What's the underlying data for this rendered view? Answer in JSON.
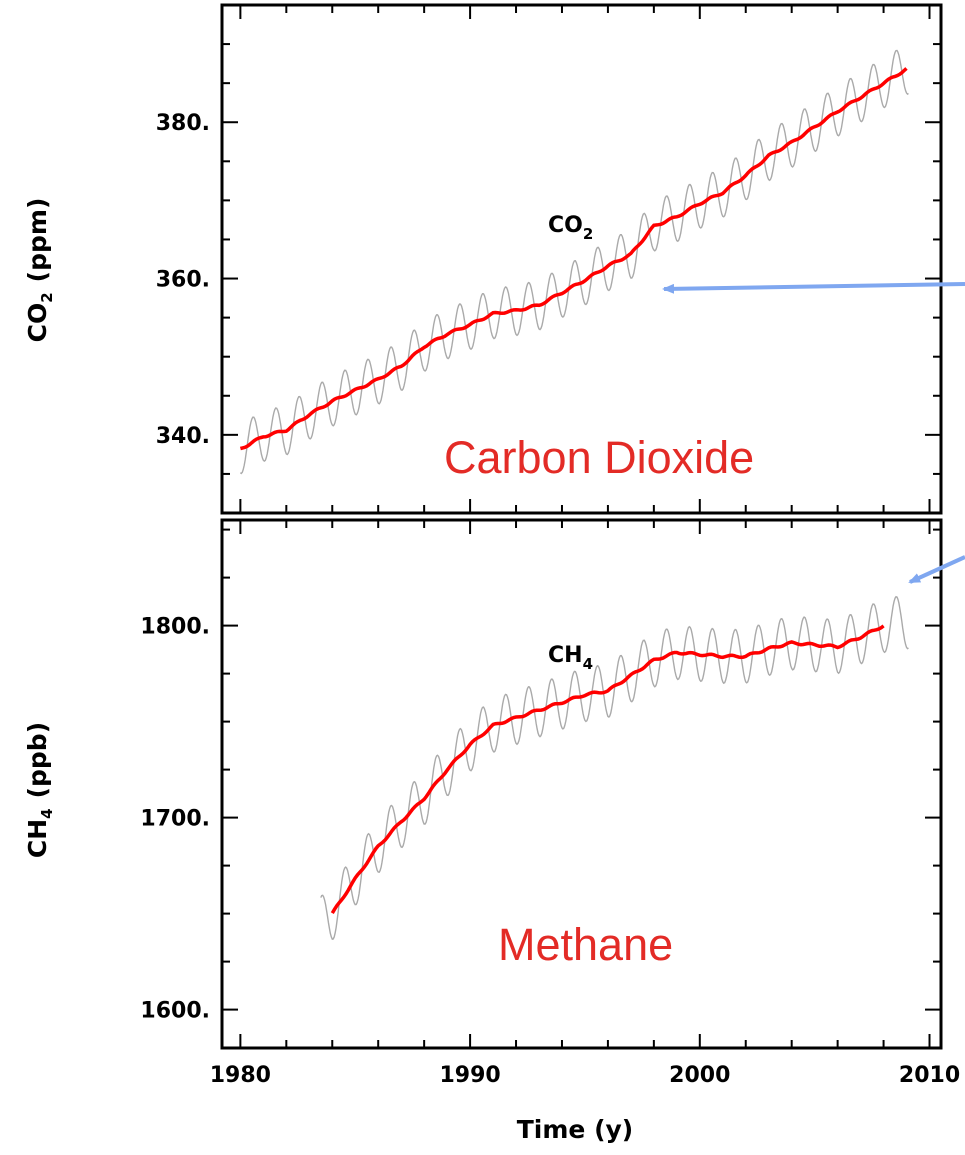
{
  "chart_data": [
    {
      "type": "line",
      "panel": "top",
      "ylabel_main": "CO",
      "ylabel_sub": "2",
      "ylabel_unit": "(ppm)",
      "ylim": [
        330,
        395
      ],
      "xlim": [
        1979.2,
        2010.5
      ],
      "yticks": [
        "340.",
        "360.",
        "380."
      ],
      "ytick_values": [
        340,
        360,
        380
      ],
      "series_label_main": "CO",
      "series_label_sub": "2",
      "annotation": "Carbon Dioxide",
      "series": [
        {
          "role": "trend",
          "color": "#ff0000",
          "x": [
            1980.0,
            1981.0,
            1982.0,
            1983.0,
            1984.0,
            1985.0,
            1986.0,
            1987.0,
            1988.0,
            1989.0,
            1990.0,
            1991.0,
            1992.0,
            1993.0,
            1994.0,
            1995.0,
            1996.0,
            1997.0,
            1998.0,
            1999.0,
            2000.0,
            2001.0,
            2002.0,
            2003.0,
            2004.0,
            2005.0,
            2006.0,
            2007.0,
            2008.0,
            2009.0
          ],
          "y": [
            338.2,
            339.8,
            340.6,
            342.6,
            344.3,
            345.7,
            347.1,
            348.8,
            351.3,
            352.9,
            354.1,
            355.5,
            355.9,
            356.6,
            358.2,
            359.8,
            361.6,
            363.1,
            366.7,
            367.9,
            369.6,
            371.0,
            373.2,
            375.7,
            377.4,
            379.4,
            381.4,
            383.2,
            385.0,
            386.8
          ]
        },
        {
          "role": "monthly",
          "color": "#aaaaaa",
          "amplitude": 3.2,
          "x": [
            1980.0,
            1981.0,
            1982.0,
            1983.0,
            1984.0,
            1985.0,
            1986.0,
            1987.0,
            1988.0,
            1989.0,
            1990.0,
            1991.0,
            1992.0,
            1993.0,
            1994.0,
            1995.0,
            1996.0,
            1997.0,
            1998.0,
            1999.0,
            2000.0,
            2001.0,
            2002.0,
            2003.0,
            2004.0,
            2005.0,
            2006.0,
            2007.0,
            2008.0,
            2009.0
          ],
          "y": [
            338.2,
            339.8,
            340.6,
            342.6,
            344.3,
            345.7,
            347.1,
            348.8,
            351.3,
            352.9,
            354.1,
            355.5,
            355.9,
            356.6,
            358.2,
            359.8,
            361.6,
            363.1,
            366.7,
            367.9,
            369.6,
            371.0,
            373.2,
            375.7,
            377.4,
            379.4,
            381.4,
            383.2,
            385.0,
            386.8
          ]
        }
      ]
    },
    {
      "type": "line",
      "panel": "bottom",
      "ylabel_main": "CH",
      "ylabel_sub": "4",
      "ylabel_unit": "(ppb)",
      "ylim": [
        1580,
        1855
      ],
      "xlim": [
        1979.2,
        2010.5
      ],
      "yticks": [
        "1600.",
        "1700.",
        "1800."
      ],
      "ytick_values": [
        1600,
        1700,
        1800
      ],
      "xticks": [
        "1980",
        "1990",
        "2000",
        "2010"
      ],
      "xtick_values": [
        1980,
        1990,
        2000,
        2010
      ],
      "xlabel": "Time (y)",
      "series_label_main": "CH",
      "series_label_sub": "4",
      "annotation": "Methane",
      "series": [
        {
          "role": "trend",
          "color": "#ff0000",
          "x": [
            1984.0,
            1985.0,
            1986.0,
            1987.0,
            1988.0,
            1989.0,
            1990.0,
            1991.0,
            1992.0,
            1993.0,
            1994.0,
            1995.0,
            1996.0,
            1997.0,
            1998.0,
            1999.0,
            2000.0,
            2001.0,
            2002.0,
            2003.0,
            2004.0,
            2005.0,
            2006.0,
            2007.0,
            2008.0
          ],
          "y": [
            1650,
            1668,
            1685,
            1698,
            1710,
            1725,
            1738,
            1748,
            1752,
            1756,
            1760,
            1764,
            1766,
            1774,
            1782,
            1786,
            1785,
            1784,
            1784,
            1788,
            1791,
            1790,
            1789,
            1794,
            1800
          ]
        },
        {
          "role": "monthly",
          "color": "#aaaaaa",
          "amplitude": 14,
          "x": [
            1983.5,
            1984.0,
            1985.0,
            1986.0,
            1987.0,
            1988.0,
            1989.0,
            1990.0,
            1991.0,
            1992.0,
            1993.0,
            1994.0,
            1995.0,
            1996.0,
            1997.0,
            1998.0,
            1999.0,
            2000.0,
            2001.0,
            2002.0,
            2003.0,
            2004.0,
            2005.0,
            2006.0,
            2007.0,
            2008.0,
            2009.0
          ],
          "y": [
            1645,
            1650,
            1668,
            1685,
            1698,
            1710,
            1725,
            1738,
            1748,
            1752,
            1756,
            1760,
            1764,
            1766,
            1774,
            1782,
            1786,
            1785,
            1784,
            1784,
            1788,
            1791,
            1790,
            1789,
            1794,
            1800,
            1802
          ]
        }
      ]
    }
  ]
}
